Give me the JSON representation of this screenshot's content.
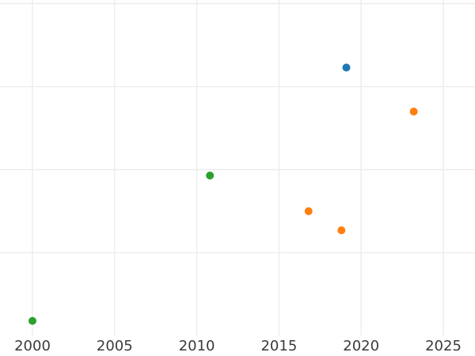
{
  "chart_data": {
    "type": "scatter",
    "title": "",
    "xlabel": "",
    "ylabel": "",
    "x_tick_labels": [
      "2000",
      "2005",
      "2010",
      "2015",
      "2020",
      "2025"
    ],
    "x_tick_values": [
      2000,
      2005,
      2010,
      2015,
      2020,
      2025
    ],
    "xlim": [
      1998.0,
      2026.9
    ],
    "ylim": [
      0,
      4.05
    ],
    "y_axis_note": "y tick labels cropped out of frame; y values estimated in gridline units (0 = bottom edge, +1 per horizontal gridline)",
    "y_gridline_values": [
      1,
      2,
      3,
      4
    ],
    "grid": true,
    "legend_position": "none",
    "marker_diameter_px": 10,
    "series": [
      {
        "name": "green-series",
        "color": "#2ca02c",
        "points": [
          {
            "x": 2000.0,
            "y": 0.18
          },
          {
            "x": 2010.8,
            "y": 1.93
          }
        ]
      },
      {
        "name": "orange-series",
        "color": "#ff7f0e",
        "points": [
          {
            "x": 2016.8,
            "y": 1.5
          },
          {
            "x": 2018.8,
            "y": 1.27
          },
          {
            "x": 2023.2,
            "y": 2.7
          }
        ]
      },
      {
        "name": "blue-series",
        "color": "#1f77b4",
        "points": [
          {
            "x": 2019.1,
            "y": 3.23
          }
        ]
      }
    ],
    "colors": {
      "background": "#ffffff",
      "gridline": "#ebebeb",
      "tick_label": "#3b3b3b"
    }
  }
}
